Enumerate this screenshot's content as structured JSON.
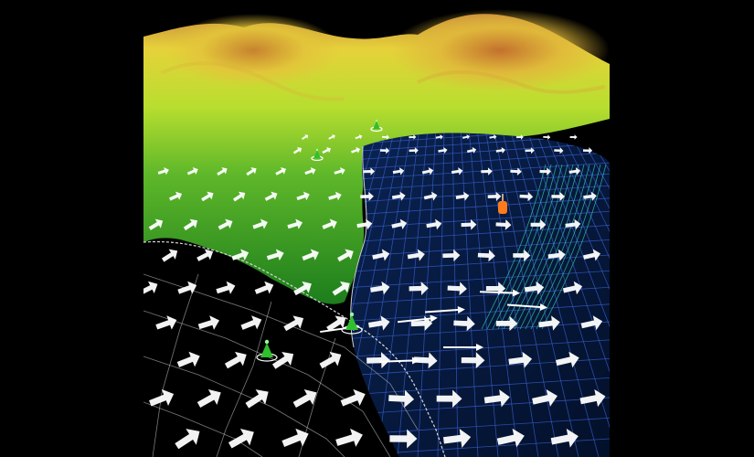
{
  "scene": {
    "kind": "3d-terrain-flow-visualization",
    "colors": {
      "background": "#000000",
      "terrain_low": "#1f8a1f",
      "terrain_mid": "#8fcf2a",
      "terrain_high": "#e6d23a",
      "terrain_peak": "#c98a3a",
      "ocean": "#071a3f",
      "grid_blue": "#3a5fd0",
      "grid_cyan": "#2fc7a4",
      "arrow": "#ffffff",
      "marker_green": "#2fbf2f",
      "marker_orange": "#ff7a1a"
    },
    "icons": {
      "flow_arrow": "arrow-icon",
      "station_marker": "cone-marker-icon",
      "highlight_marker": "orange-marker-icon"
    },
    "markers": [
      {
        "kind": "green"
      },
      {
        "kind": "green"
      },
      {
        "kind": "green"
      },
      {
        "kind": "green"
      },
      {
        "kind": "orange"
      }
    ]
  }
}
